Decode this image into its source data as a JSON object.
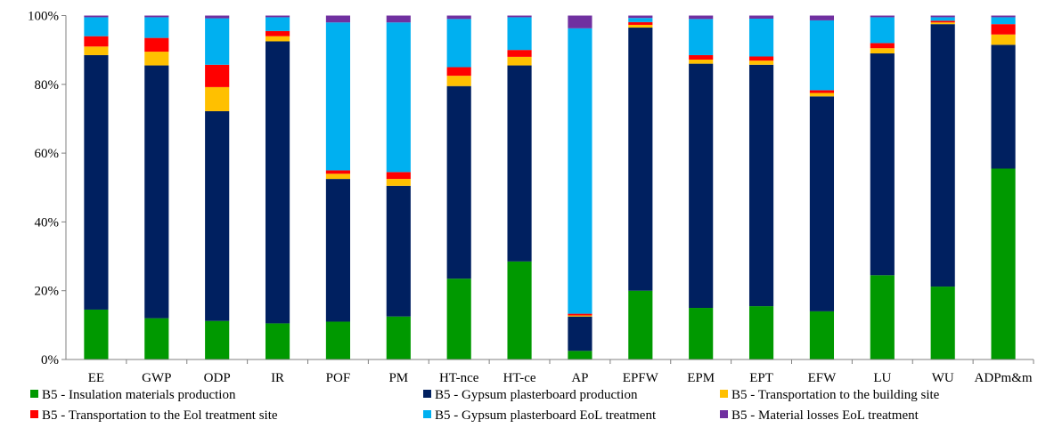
{
  "chart_data": {
    "type": "bar",
    "stacked": true,
    "percent": true,
    "title": "",
    "xlabel": "",
    "ylabel": "",
    "ylim": [
      0,
      100
    ],
    "yticks": [
      "0%",
      "20%",
      "40%",
      "60%",
      "80%",
      "100%"
    ],
    "grid": false,
    "legend_position": "bottom",
    "categories": [
      "EE",
      "GWP",
      "ODP",
      "IR",
      "POF",
      "PM",
      "HT-nce",
      "HT-ce",
      "AP",
      "EPFW",
      "EPM",
      "EPT",
      "EFW",
      "LU",
      "WU",
      "ADPm&m"
    ],
    "series": [
      {
        "name": "B5 - Insulation materials production",
        "color": "#009900",
        "values": [
          14.5,
          12.0,
          11.2,
          10.5,
          11.0,
          12.5,
          23.5,
          28.5,
          2.5,
          20.0,
          15.0,
          15.5,
          14.0,
          24.5,
          21.2,
          55.5
        ]
      },
      {
        "name": "B5 - Gypsum plasterboard production",
        "color": "#002060",
        "values": [
          74.0,
          73.5,
          61.0,
          82.0,
          41.5,
          38.0,
          56.0,
          57.0,
          10.0,
          76.5,
          71.0,
          70.2,
          62.5,
          64.5,
          76.3,
          36.0
        ]
      },
      {
        "name": "B5 - Transportation to the building site",
        "color": "#FFC000",
        "values": [
          2.5,
          4.0,
          7.0,
          1.5,
          1.5,
          2.0,
          3.0,
          2.5,
          0.3,
          0.8,
          1.2,
          1.2,
          1.0,
          1.5,
          0.5,
          3.0
        ]
      },
      {
        "name": "B5 - Transportation to the Eol treatment site",
        "color": "#FF0000",
        "values": [
          3.0,
          4.0,
          6.5,
          1.5,
          1.0,
          2.0,
          2.5,
          2.0,
          0.5,
          0.8,
          1.3,
          1.2,
          0.8,
          1.5,
          0.5,
          3.0
        ]
      },
      {
        "name": "B5 - Gypsum plasterboard EoL treatment",
        "color": "#00B0F0",
        "values": [
          5.5,
          6.0,
          13.5,
          4.0,
          43.0,
          43.5,
          14.0,
          9.5,
          83.0,
          1.2,
          10.5,
          11.0,
          20.3,
          7.5,
          1.0,
          2.0
        ]
      },
      {
        "name": "B5 - Material losses EoL treatment",
        "color": "#7030A0",
        "values": [
          0.5,
          0.5,
          0.8,
          0.5,
          2.0,
          2.0,
          1.0,
          0.5,
          3.7,
          0.7,
          1.0,
          0.9,
          1.4,
          0.5,
          0.5,
          0.5
        ]
      }
    ]
  }
}
